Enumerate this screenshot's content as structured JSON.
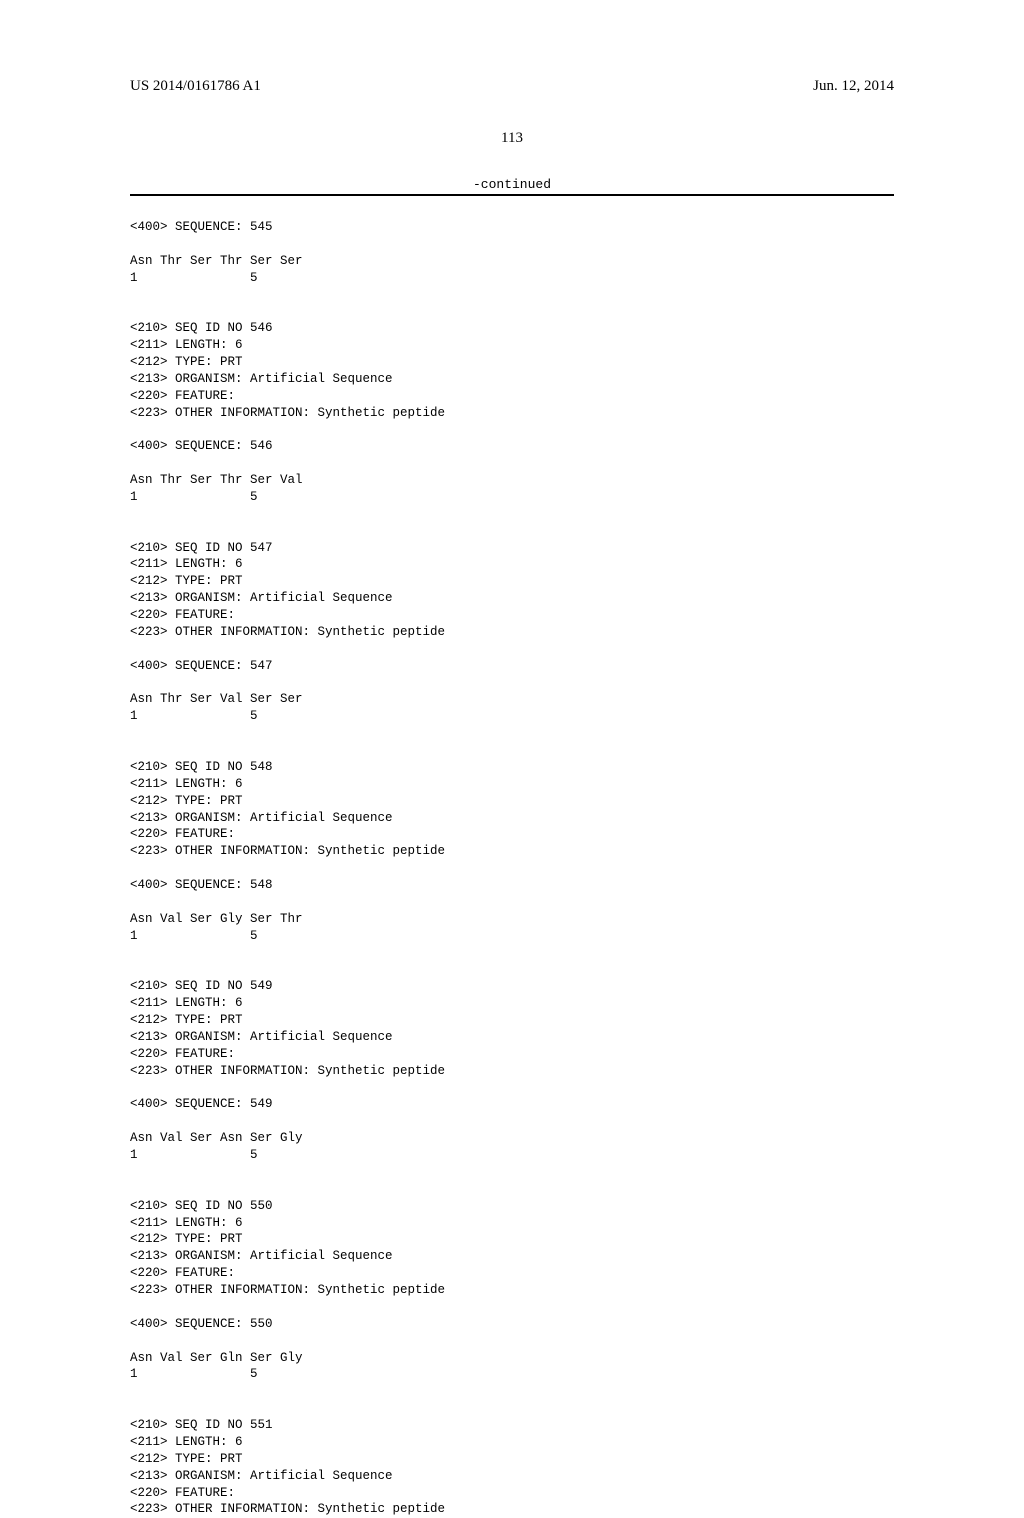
{
  "header": {
    "left": "US 2014/0161786 A1",
    "right": "Jun. 12, 2014"
  },
  "page_number": "113",
  "continued_label": "-continued",
  "intro": {
    "seq400": "<400> SEQUENCE: 545",
    "residues": "Asn Thr Ser Thr Ser Ser",
    "numbers": "1               5"
  },
  "entries": [
    {
      "h210": "<210> SEQ ID NO 546",
      "h211": "<211> LENGTH: 6",
      "h212": "<212> TYPE: PRT",
      "h213": "<213> ORGANISM: Artificial Sequence",
      "h220": "<220> FEATURE:",
      "h223": "<223> OTHER INFORMATION: Synthetic peptide",
      "seq400": "<400> SEQUENCE: 546",
      "residues": "Asn Thr Ser Thr Ser Val",
      "numbers": "1               5"
    },
    {
      "h210": "<210> SEQ ID NO 547",
      "h211": "<211> LENGTH: 6",
      "h212": "<212> TYPE: PRT",
      "h213": "<213> ORGANISM: Artificial Sequence",
      "h220": "<220> FEATURE:",
      "h223": "<223> OTHER INFORMATION: Synthetic peptide",
      "seq400": "<400> SEQUENCE: 547",
      "residues": "Asn Thr Ser Val Ser Ser",
      "numbers": "1               5"
    },
    {
      "h210": "<210> SEQ ID NO 548",
      "h211": "<211> LENGTH: 6",
      "h212": "<212> TYPE: PRT",
      "h213": "<213> ORGANISM: Artificial Sequence",
      "h220": "<220> FEATURE:",
      "h223": "<223> OTHER INFORMATION: Synthetic peptide",
      "seq400": "<400> SEQUENCE: 548",
      "residues": "Asn Val Ser Gly Ser Thr",
      "numbers": "1               5"
    },
    {
      "h210": "<210> SEQ ID NO 549",
      "h211": "<211> LENGTH: 6",
      "h212": "<212> TYPE: PRT",
      "h213": "<213> ORGANISM: Artificial Sequence",
      "h220": "<220> FEATURE:",
      "h223": "<223> OTHER INFORMATION: Synthetic peptide",
      "seq400": "<400> SEQUENCE: 549",
      "residues": "Asn Val Ser Asn Ser Gly",
      "numbers": "1               5"
    },
    {
      "h210": "<210> SEQ ID NO 550",
      "h211": "<211> LENGTH: 6",
      "h212": "<212> TYPE: PRT",
      "h213": "<213> ORGANISM: Artificial Sequence",
      "h220": "<220> FEATURE:",
      "h223": "<223> OTHER INFORMATION: Synthetic peptide",
      "seq400": "<400> SEQUENCE: 550",
      "residues": "Asn Val Ser Gln Ser Gly",
      "numbers": "1               5"
    },
    {
      "h210": "<210> SEQ ID NO 551",
      "h211": "<211> LENGTH: 6",
      "h212": "<212> TYPE: PRT",
      "h213": "<213> ORGANISM: Artificial Sequence",
      "h220": "<220> FEATURE:",
      "h223": "<223> OTHER INFORMATION: Synthetic peptide"
    }
  ]
}
